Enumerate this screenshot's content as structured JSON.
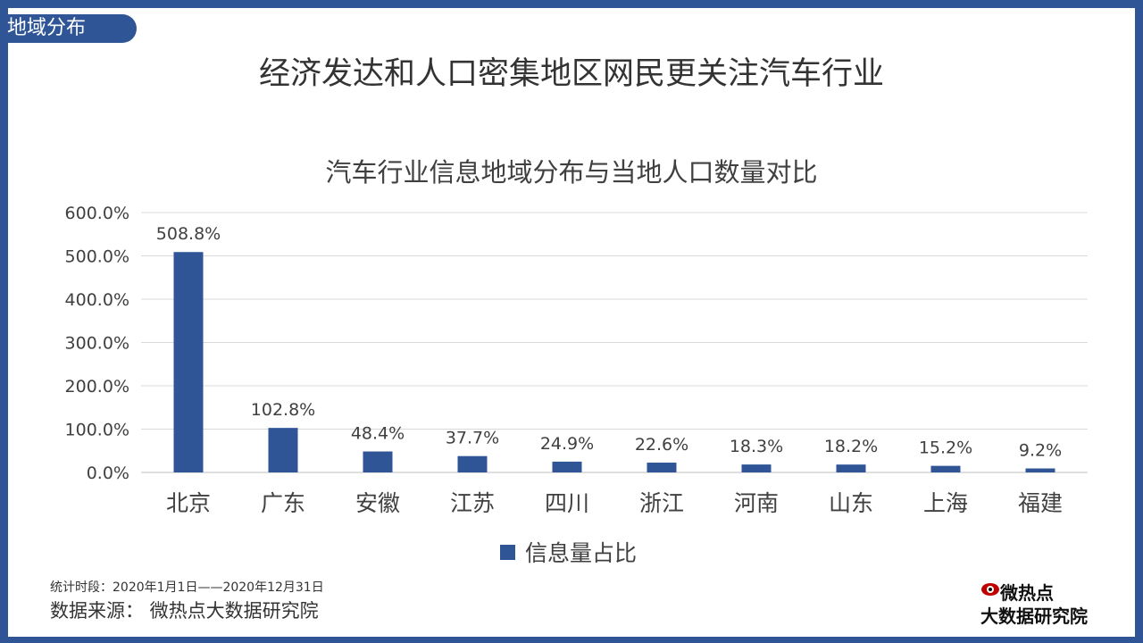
{
  "section_tag": "地域分布",
  "main_title": "经济发达和人口密集地区网民更关注汽车行业",
  "footer": {
    "stat_period": "统计时段：2020年1月1日——2020年12月31日",
    "source": "数据来源：  微热点大数据研究院"
  },
  "logo": {
    "line1": "微热点",
    "line2": "大数据研究院",
    "icon": "eye-logo-icon"
  },
  "colors": {
    "frame": "#2f5597",
    "bar": "#2f5597",
    "grid": "#d9d9d9"
  },
  "chart_data": {
    "type": "bar",
    "title": "汽车行业信息地域分布与当地人口数量对比",
    "categories": [
      "北京",
      "广东",
      "安徽",
      "江苏",
      "四川",
      "浙江",
      "河南",
      "山东",
      "上海",
      "福建"
    ],
    "series": [
      {
        "name": "信息量占比",
        "values": [
          508.8,
          102.8,
          48.4,
          37.7,
          24.9,
          22.6,
          18.3,
          18.2,
          15.2,
          9.2
        ],
        "labels": [
          "508.8%",
          "102.8%",
          "48.4%",
          "37.7%",
          "24.9%",
          "22.6%",
          "18.3%",
          "18.2%",
          "15.2%",
          "9.2%"
        ]
      }
    ],
    "yticks": [
      "0.0%",
      "100.0%",
      "200.0%",
      "300.0%",
      "400.0%",
      "500.0%",
      "600.0%"
    ],
    "ylim": [
      0,
      600
    ],
    "grid": true,
    "legend_position": "bottom"
  }
}
